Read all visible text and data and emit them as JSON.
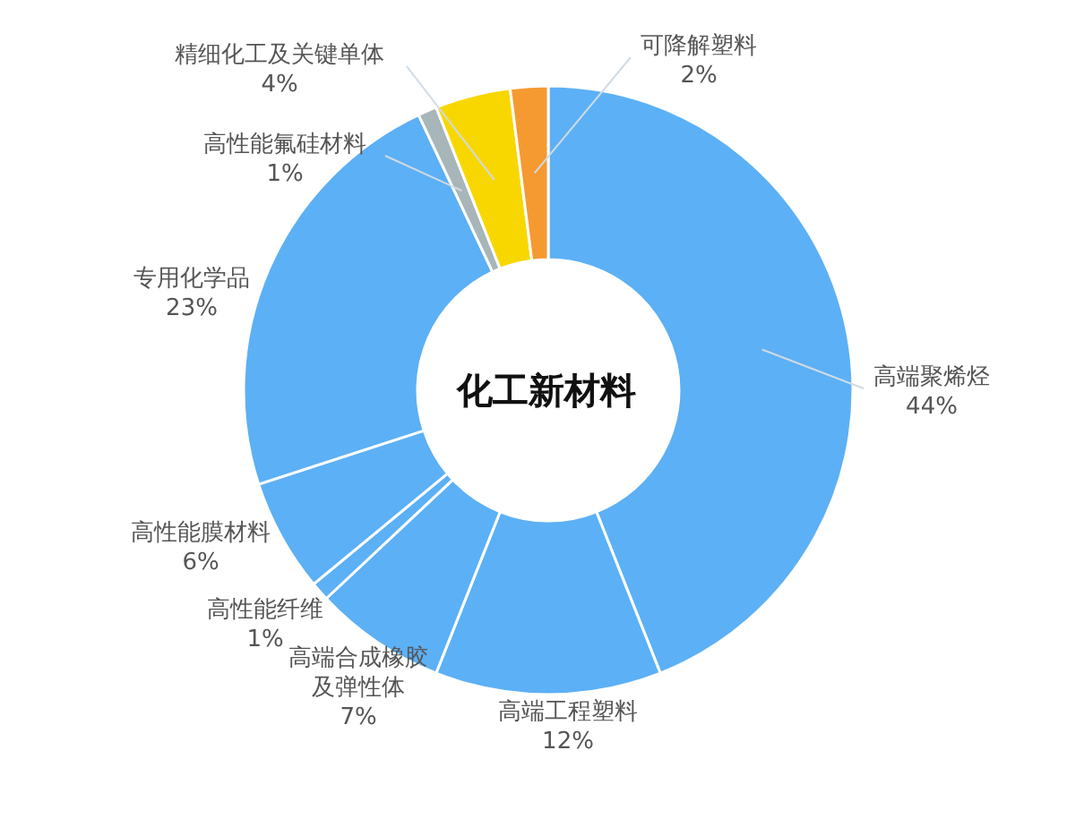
{
  "chart_data": {
    "type": "donut",
    "title": "化工新材料",
    "categories": [
      "高端聚烯烃",
      "高端工程塑料",
      "高端合成橡胶及弹性体",
      "高性能纤维",
      "高性能膜材料",
      "专用化学品",
      "高性能氟硅材料",
      "精细化工及关键单体",
      "可降解塑料"
    ],
    "values": [
      44,
      12,
      7,
      1,
      6,
      23,
      1,
      4,
      2
    ],
    "value_labels": [
      "44%",
      "12%",
      "7%",
      "1%",
      "6%",
      "23%",
      "1%",
      "4%",
      "2%"
    ],
    "colors": [
      "#5cb0f5",
      "#5cb0f5",
      "#5cb0f5",
      "#5cb0f5",
      "#5cb0f5",
      "#5cb0f5",
      "#a8b5b9",
      "#f8d700",
      "#f59a30"
    ]
  }
}
